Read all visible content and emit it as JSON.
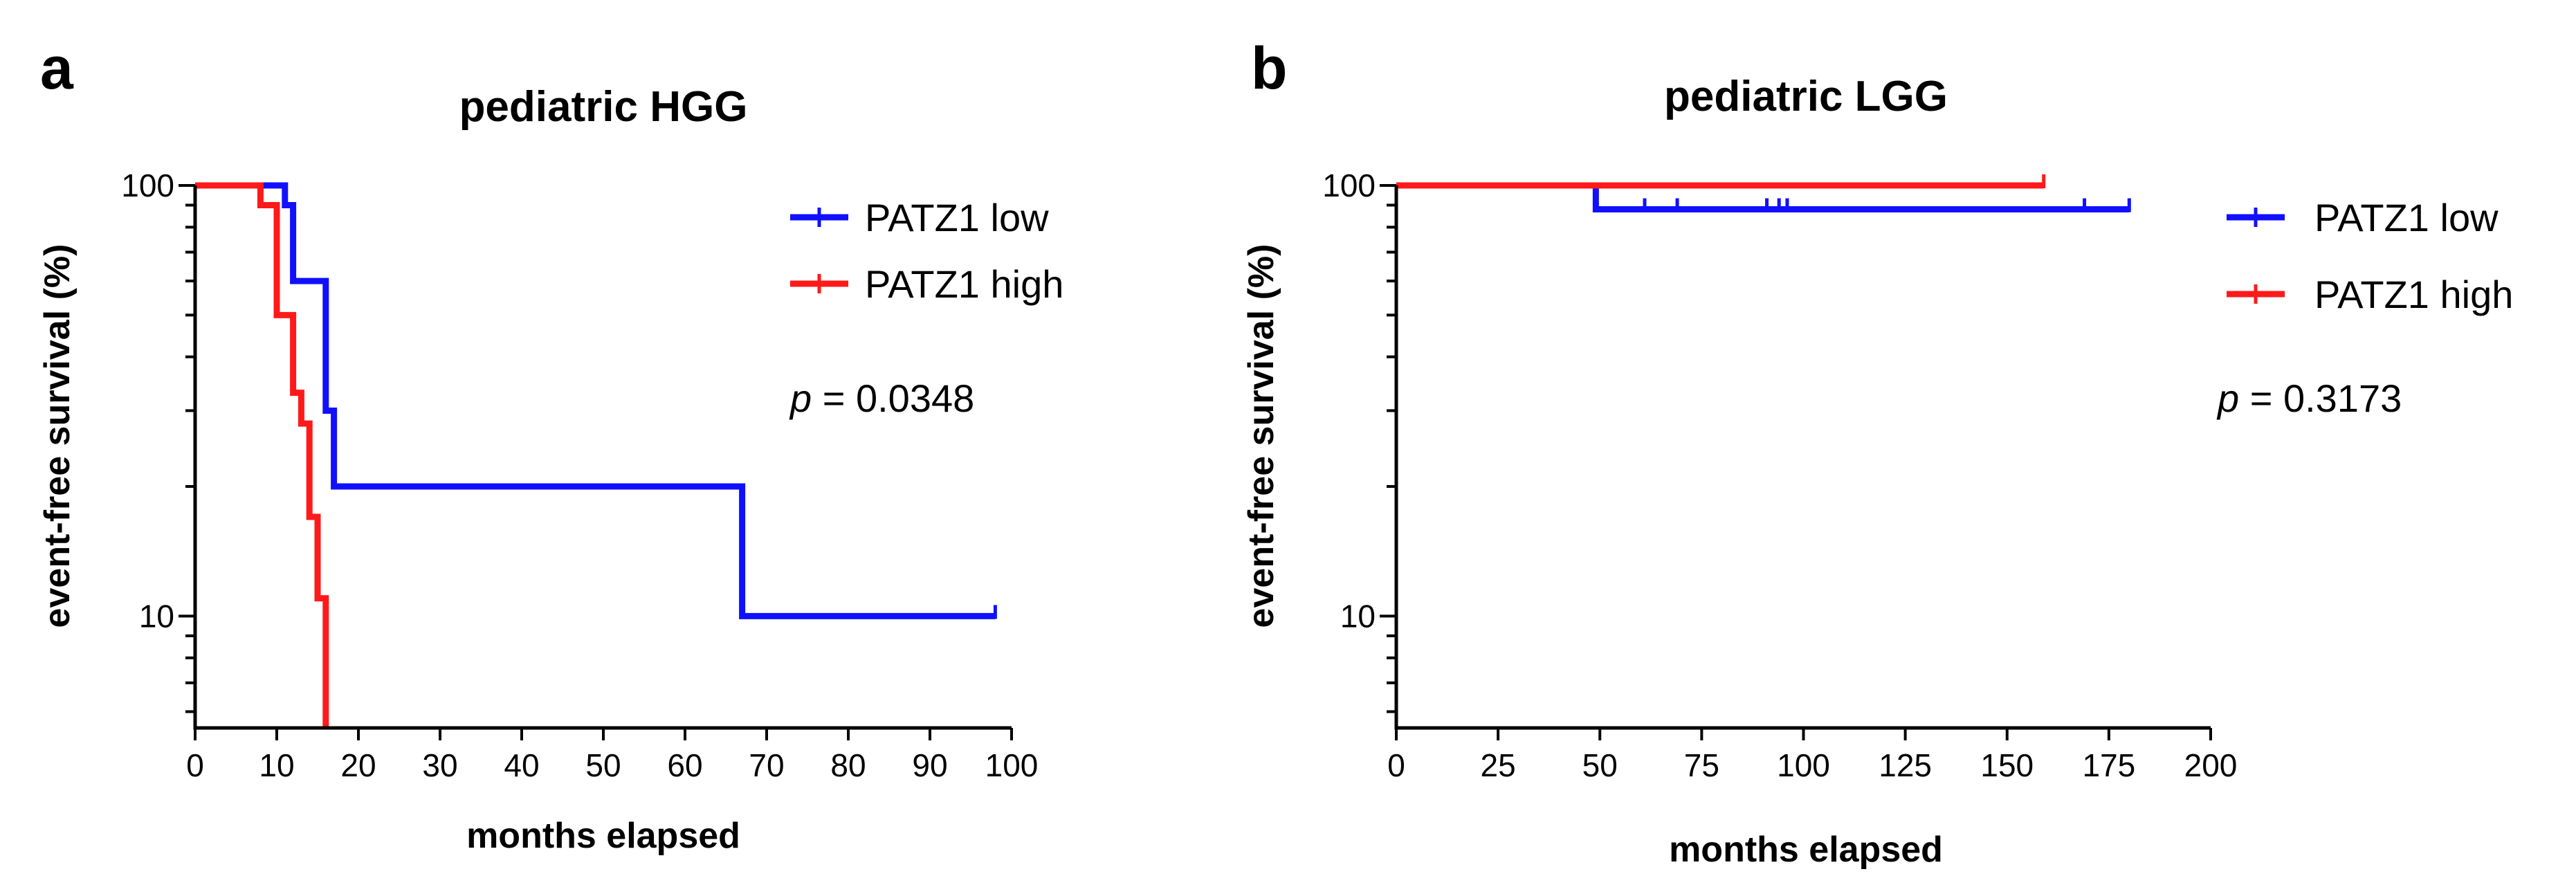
{
  "chart_data": [
    {
      "panel": "a",
      "type": "line",
      "subtype": "kaplan-meier step survival curve",
      "title": "pediatric HGG",
      "xlabel": "months elapsed",
      "ylabel": "event-free survival (%)",
      "xlim": [
        0,
        100
      ],
      "ylim": [
        5.5,
        100
      ],
      "yscale": "log",
      "xticks": [
        0,
        10,
        20,
        30,
        40,
        50,
        60,
        70,
        80,
        90,
        100
      ],
      "yticks": [
        10,
        100
      ],
      "yticks_minor": [
        20,
        30,
        40,
        50,
        60,
        70,
        80,
        90,
        6,
        7,
        8,
        9
      ],
      "legend_position": "top-right",
      "p_value": {
        "prefix": "p",
        "text": " = 0.0348"
      },
      "series": [
        {
          "name": "PATZ1 low",
          "color": "#1010ff",
          "steps": [
            [
              0,
              100
            ],
            [
              11,
              90
            ],
            [
              12,
              60
            ],
            [
              16,
              30
            ],
            [
              17,
              20
            ],
            [
              67,
              10
            ],
            [
              98,
              10
            ]
          ],
          "censored": [
            [
              98,
              10
            ]
          ]
        },
        {
          "name": "PATZ1 high",
          "color": "#ff1a1a",
          "steps": [
            [
              0,
              100
            ],
            [
              8,
              90
            ],
            [
              10,
              50
            ],
            [
              12,
              33
            ],
            [
              13,
              28
            ],
            [
              14,
              17
            ],
            [
              15,
              11
            ],
            [
              16,
              5.5
            ]
          ],
          "censored": []
        }
      ]
    },
    {
      "panel": "b",
      "type": "line",
      "subtype": "kaplan-meier step survival curve",
      "title": "pediatric LGG",
      "xlabel": "months elapsed",
      "ylabel": "event-free survival (%)",
      "xlim": [
        0,
        200
      ],
      "ylim": [
        5.5,
        100
      ],
      "yscale": "log",
      "xticks": [
        0,
        25,
        50,
        75,
        100,
        125,
        150,
        175,
        200
      ],
      "yticks": [
        10,
        100
      ],
      "yticks_minor": [
        20,
        30,
        40,
        50,
        60,
        70,
        80,
        90,
        6,
        7,
        8,
        9
      ],
      "legend_position": "top-right",
      "p_value": {
        "prefix": "p",
        "text": " = 0.3173"
      },
      "series": [
        {
          "name": "PATZ1 low",
          "color": "#1010ff",
          "steps": [
            [
              0,
              100
            ],
            [
              49,
              88
            ],
            [
              180,
              88
            ]
          ],
          "censored": [
            [
              61,
              88
            ],
            [
              69,
              88
            ],
            [
              91,
              88
            ],
            [
              94,
              88
            ],
            [
              96,
              88
            ],
            [
              169,
              88
            ],
            [
              180,
              88
            ]
          ]
        },
        {
          "name": "PATZ1 high",
          "color": "#ff1a1a",
          "steps": [
            [
              0,
              100
            ],
            [
              159,
              100
            ]
          ],
          "censored": [
            [
              159,
              100
            ]
          ]
        }
      ]
    }
  ]
}
